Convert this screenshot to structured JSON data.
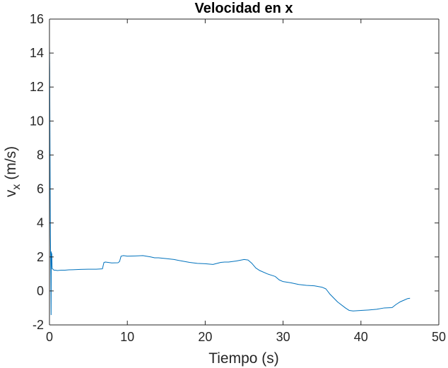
{
  "chart_data": {
    "type": "line",
    "title": "Velocidad en x",
    "xlabel": "Tiempo (s)",
    "ylabel": "v",
    "ylabel_subscript": "x",
    "ylabel_unit": "(m/s)",
    "xlim": [
      0,
      50
    ],
    "ylim": [
      -2,
      16
    ],
    "xticks": [
      0,
      10,
      20,
      30,
      40,
      50
    ],
    "yticks": [
      -2,
      0,
      2,
      4,
      6,
      8,
      10,
      12,
      14,
      16
    ],
    "grid": false,
    "line_color": "#0072BD",
    "series": [
      {
        "x": [
          0,
          0.03,
          0.06,
          0.09,
          0.12,
          0.15,
          0.18,
          0.21,
          0.24,
          0.27,
          0.3,
          0.33,
          0.36,
          0.4,
          0.45,
          0.5,
          0.6,
          0.8,
          1.0,
          1.5,
          2.0,
          2.5,
          3.0,
          4.0,
          5.0,
          6.0,
          6.8,
          7.0,
          7.2,
          8.0,
          8.8,
          9.0,
          9.2,
          9.5,
          10.0,
          11.0,
          12.0,
          13.0,
          13.5,
          14.0,
          15.0,
          16.0,
          17.0,
          18.0,
          19.0,
          20.0,
          21.0,
          22.0,
          22.5,
          23.0,
          24.0,
          25.0,
          25.5,
          26.0,
          26.5,
          27.0,
          28.0,
          29.0,
          29.5,
          30.0,
          31.0,
          32.0,
          33.0,
          34.0,
          35.0,
          35.5,
          36.0,
          37.0,
          38.0,
          38.5,
          39.0,
          40.0,
          41.0,
          42.0,
          43.0,
          44.0,
          44.5,
          45.0,
          45.5,
          46.0,
          46.3
        ],
        "values": [
          14.4,
          13.0,
          9.5,
          6.0,
          3.3,
          2.0,
          0.9,
          -1.4,
          2.3,
          1.6,
          2.2,
          1.5,
          1.3,
          1.3,
          1.28,
          1.25,
          1.22,
          1.22,
          1.2,
          1.22,
          1.22,
          1.24,
          1.25,
          1.27,
          1.28,
          1.28,
          1.3,
          1.68,
          1.7,
          1.65,
          1.66,
          1.73,
          2.05,
          2.08,
          2.05,
          2.06,
          2.08,
          2.0,
          1.95,
          1.95,
          1.9,
          1.85,
          1.76,
          1.68,
          1.62,
          1.6,
          1.56,
          1.68,
          1.7,
          1.7,
          1.76,
          1.85,
          1.82,
          1.62,
          1.35,
          1.2,
          1.0,
          0.85,
          0.65,
          0.55,
          0.48,
          0.38,
          0.33,
          0.3,
          0.22,
          0.12,
          -0.18,
          -0.65,
          -1.0,
          -1.15,
          -1.18,
          -1.15,
          -1.12,
          -1.08,
          -1.0,
          -0.98,
          -0.8,
          -0.65,
          -0.55,
          -0.45,
          -0.43
        ]
      }
    ]
  }
}
